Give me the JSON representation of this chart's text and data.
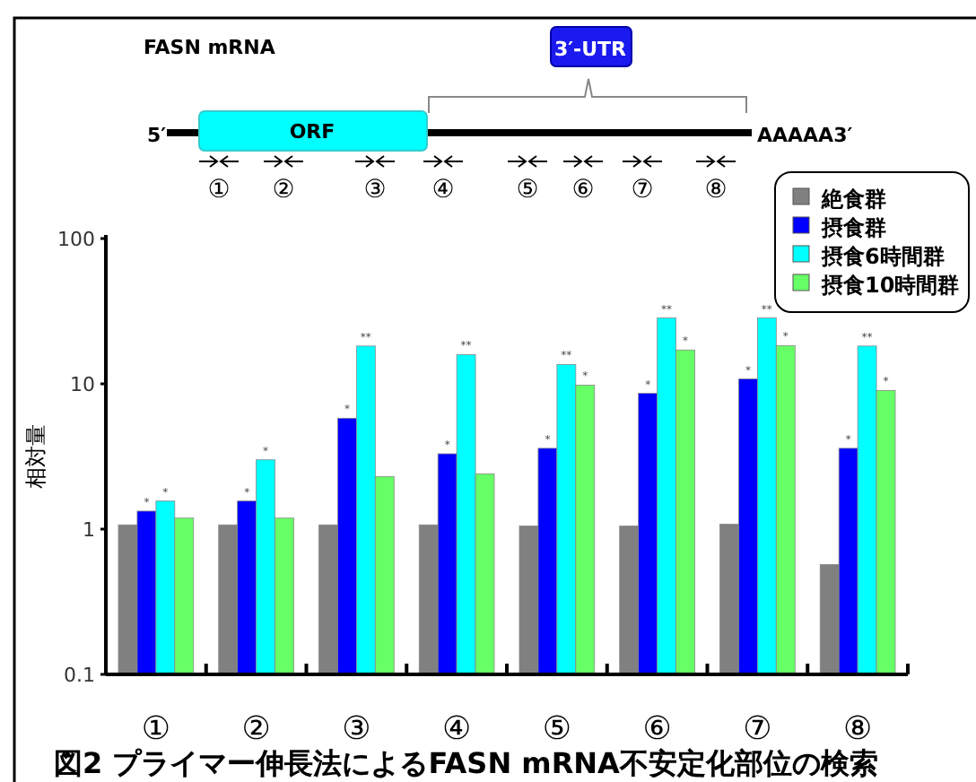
{
  "chart_data": {
    "type": "bar",
    "title": "図2 プライマー伸長法によるFASN mRNA不安定化部位の検索",
    "ylabel": "相対量",
    "categories": [
      "①",
      "②",
      "③",
      "④",
      "⑤",
      "⑥",
      "⑦",
      "⑧"
    ],
    "series": [
      {
        "name": "絶食群",
        "color": "#808080",
        "values": [
          1.07,
          1.07,
          1.07,
          1.07,
          1.05,
          1.05,
          1.08,
          0.57
        ]
      },
      {
        "name": "摂食群",
        "color": "#0000ff",
        "values": [
          1.33,
          1.56,
          5.8,
          3.3,
          3.6,
          8.6,
          10.8,
          3.6
        ]
      },
      {
        "name": "摂食6時間群",
        "color": "#00ffff",
        "values": [
          1.56,
          3.0,
          18.2,
          15.9,
          13.6,
          28.4,
          28.4,
          18.2
        ]
      },
      {
        "name": "摂食10時間群",
        "color": "#66ff66",
        "values": [
          1.19,
          1.19,
          2.3,
          2.4,
          9.8,
          17.1,
          18.3,
          9.0
        ]
      }
    ],
    "ylim": [
      0.1,
      100
    ],
    "yticks": [
      0.1,
      1,
      10,
      100
    ],
    "log": true,
    "legend": "top right",
    "annotations": [
      "FASN  mRNA",
      "3′-UTR",
      "5′",
      "ORF",
      "AAAAA3′",
      "①",
      "②",
      "③",
      "④",
      "⑤",
      "⑥",
      "⑦",
      "⑧",
      {
        "text": "*",
        "x": "①",
        "y": 1.33
      },
      {
        "text": "*",
        "x": "①",
        "y": 1.56
      },
      {
        "text": "*",
        "x": "②",
        "y": 1.56
      },
      {
        "text": "*",
        "x": "②",
        "y": 3.0
      },
      {
        "text": "*",
        "x": "③",
        "y": 5.8
      },
      {
        "text": "**",
        "x": "③",
        "y": 18.2
      },
      {
        "text": "*",
        "x": "④",
        "y": 3.3
      },
      {
        "text": "**",
        "x": "④",
        "y": 15.9
      },
      {
        "text": "*",
        "x": "⑤",
        "y": 3.6
      },
      {
        "text": "**",
        "x": "⑤",
        "y": 13.6
      },
      {
        "text": "*",
        "x": "⑤",
        "y": 9.8
      },
      {
        "text": "*",
        "x": "⑥",
        "y": 8.6
      },
      {
        "text": "**",
        "x": "⑥",
        "y": 28.4
      },
      {
        "text": "*",
        "x": "⑥",
        "y": 17.1
      },
      {
        "text": "*",
        "x": "⑦",
        "y": 10.8
      },
      {
        "text": "**",
        "x": "⑦",
        "y": 28.4
      },
      {
        "text": "*",
        "x": "⑦",
        "y": 18.3
      },
      {
        "text": "*",
        "x": "⑧",
        "y": 3.6
      },
      {
        "text": "**",
        "x": "⑧",
        "y": 18.2
      },
      {
        "text": "*",
        "x": "⑧",
        "y": 9.0
      }
    ]
  }
}
